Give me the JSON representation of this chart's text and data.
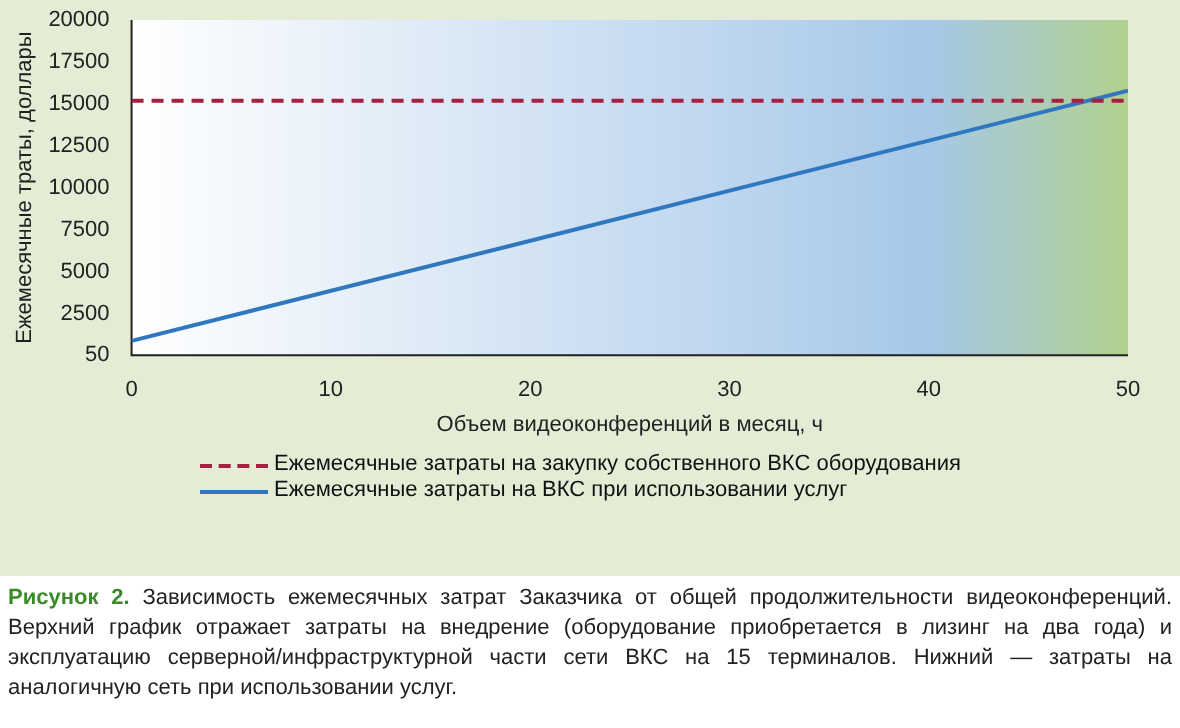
{
  "chart_data": {
    "type": "line",
    "xlabel": "Объем видеоконференций в месяц, ч",
    "ylabel": "Ежемесячные траты, доллары",
    "x": [
      0,
      50
    ],
    "xlim": [
      0,
      50
    ],
    "xticks": [
      0,
      10,
      20,
      30,
      40,
      50
    ],
    "ylim": [
      50,
      20000
    ],
    "yticks": [
      50,
      2500,
      5000,
      7500,
      10000,
      12500,
      15000,
      17500,
      20000
    ],
    "series": [
      {
        "name": "Ежемесячные затраты на закупку собственного ВКС оборудования",
        "color": "#a3223f",
        "line_style": "dashed",
        "values": [
          15200,
          15200
        ]
      },
      {
        "name": "Ежемесячные затраты на ВКС при использовании услуг",
        "color": "#2f78c0",
        "line_style": "solid",
        "values": [
          900,
          15800
        ]
      }
    ],
    "marker": "none",
    "grid": false,
    "legend": "bottom",
    "annotations": [
      "Рисунок 2.",
      "Зависимость ежемесячных затрат Заказчика от общей продолжительности видеоконференций. Верхний график отражает затраты на внедрение (оборудование приобретается в лизинг на два года) и эксплуатацию серверной/инфраструктурной части сети ВКС на 15 терминалов. Нижний — затраты на аналогичную сеть при использовании услуг."
    ]
  }
}
